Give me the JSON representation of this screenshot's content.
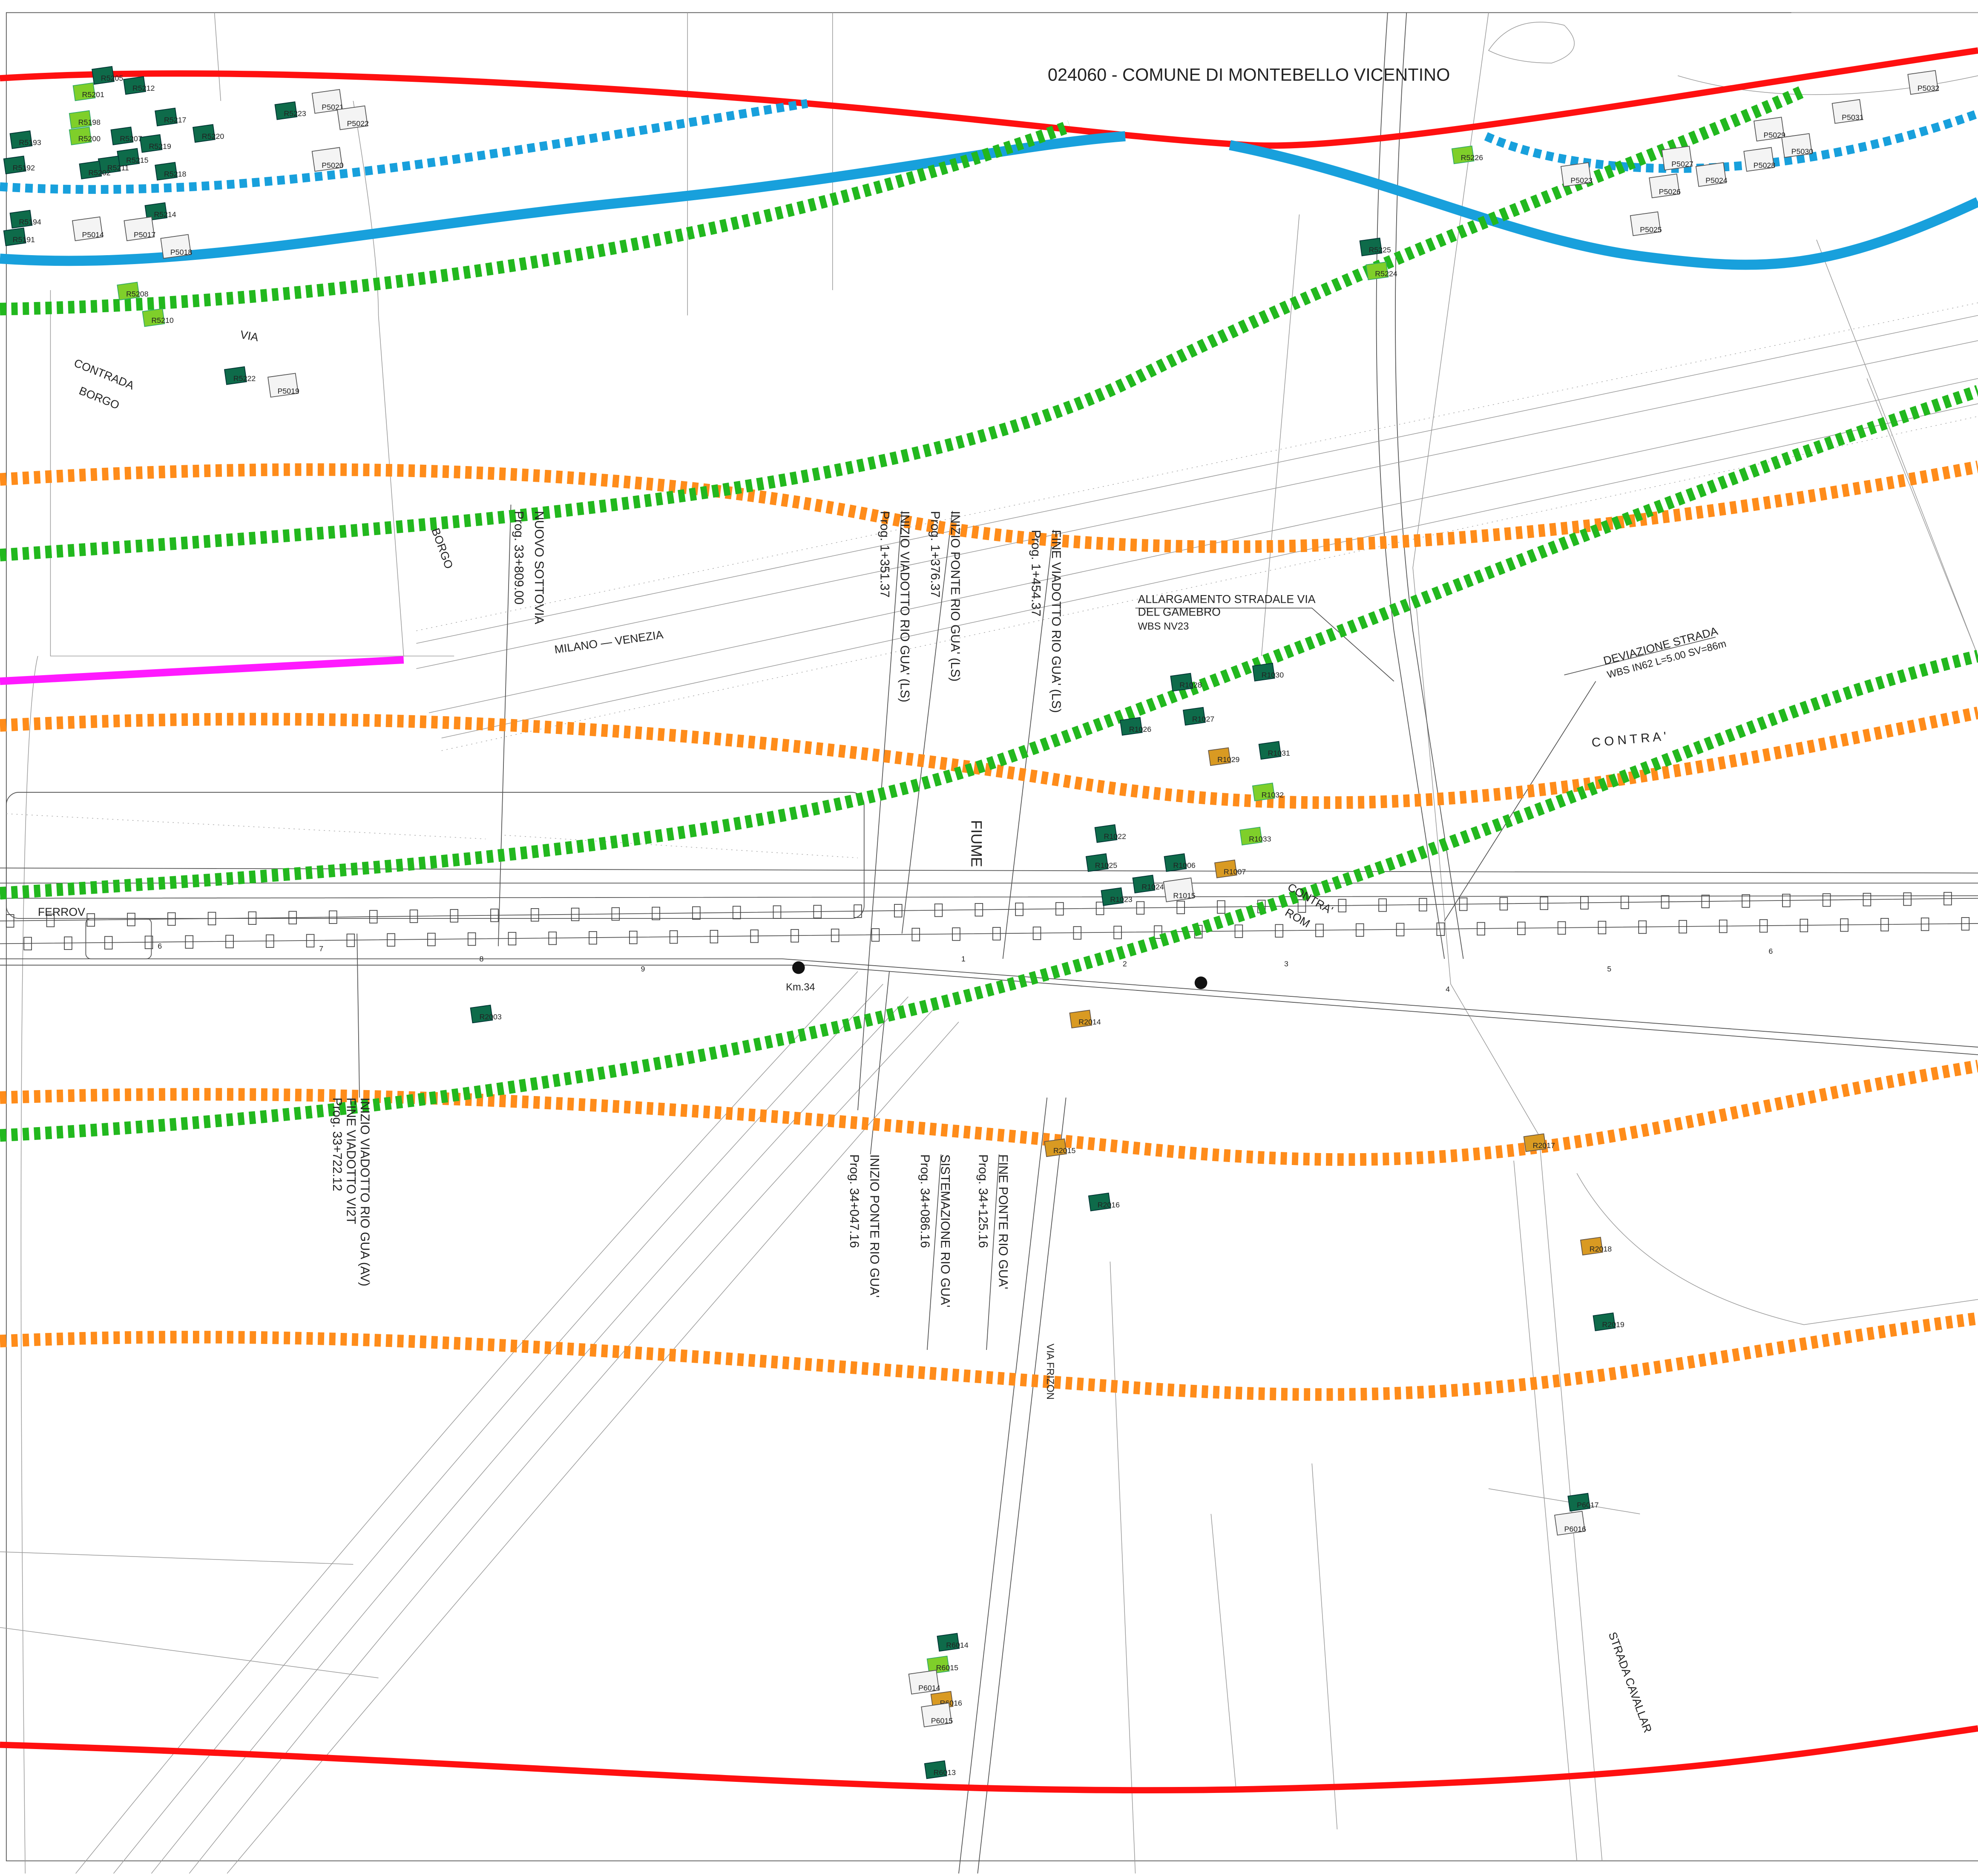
{
  "title": "024060 - COMUNE DI MONTEBELLO VICENTINO",
  "place_names": [
    "CONTRADA",
    "BORGO",
    "VIA",
    "BORGO",
    "MILANO — VENEZIA",
    "FIUME",
    "C O N T R A '",
    "CONTRA'",
    "ROM",
    "FERROV",
    "VIA FRIZON",
    "STRADA CAVALLAR",
    "Km.34"
  ],
  "works": [
    {
      "lines": [
        "NUOVO SOTTOVIA",
        "Prog. 33+809.00"
      ]
    },
    {
      "lines": [
        "INIZIO PONTE RIO GUA' (LS)",
        "Prog. 1+376.37"
      ]
    },
    {
      "lines": [
        "INIZIO VIADOTTO RIO GUA' (LS)",
        "Prog. 1+351.37"
      ]
    },
    {
      "lines": [
        "FINE VIADOTTO RIO GUA' (LS)",
        "Prog. 1+454.37"
      ]
    },
    {
      "lines": [
        "INIZIO VIADOTTO RIO GUA (AV)",
        "FINE VIADOTTO VI2T",
        "Prog. 33+722.12"
      ]
    },
    {
      "lines": [
        "INIZIO PONTE RIO GUA'",
        "Prog. 34+047.16"
      ]
    },
    {
      "lines": [
        "SISTEMAZIONE RIO GUA'",
        "Prog. 34+086.16"
      ]
    },
    {
      "lines": [
        "FINE PONTE RIO GUA'",
        "Prog. 34+125.16"
      ]
    }
  ],
  "callouts": [
    {
      "lines": [
        "ALLARGAMENTO STRADALE VIA",
        "DEL GAMEBRO"
      ],
      "wbs": "WBS NV23"
    },
    {
      "lines": [
        "DEVIAZIONE STRADA"
      ],
      "wbs": "WBS IN62 L=5.00 SV=86m"
    }
  ],
  "track_km": [
    "6",
    "7",
    "8",
    "9",
    "1",
    "2",
    "3",
    "4",
    "5",
    "6"
  ],
  "buildings": [
    "R5205",
    "R5212",
    "R5201",
    "R5198",
    "R5200",
    "R5207",
    "R5217",
    "R5220",
    "R5219",
    "R5215",
    "R5211",
    "R5218",
    "R5202",
    "R5193",
    "R5192",
    "R5194",
    "R5191",
    "R5214",
    "P5014",
    "P5017",
    "P5018",
    "R5208",
    "R5210",
    "R5222",
    "P5019",
    "P5021",
    "P5022",
    "R5223",
    "P5020",
    "R5226",
    "R5225",
    "R5224",
    "P5032",
    "P5031",
    "P5029",
    "P5030",
    "P5027",
    "P5028",
    "P5024",
    "P5023",
    "P5026",
    "P5025",
    "R1028",
    "R1030",
    "R1026",
    "R1027",
    "R1029",
    "R1031",
    "R1032",
    "R1033",
    "R1022",
    "R1025",
    "R1006",
    "R1007",
    "R1024",
    "R1015",
    "R1023",
    "R2003",
    "R2014",
    "R2015",
    "R2016",
    "R2017",
    "R2018",
    "R2019",
    "P6017",
    "P6016",
    "R6014",
    "R6015",
    "P6014",
    "R6016",
    "P6015",
    "R6013"
  ]
}
